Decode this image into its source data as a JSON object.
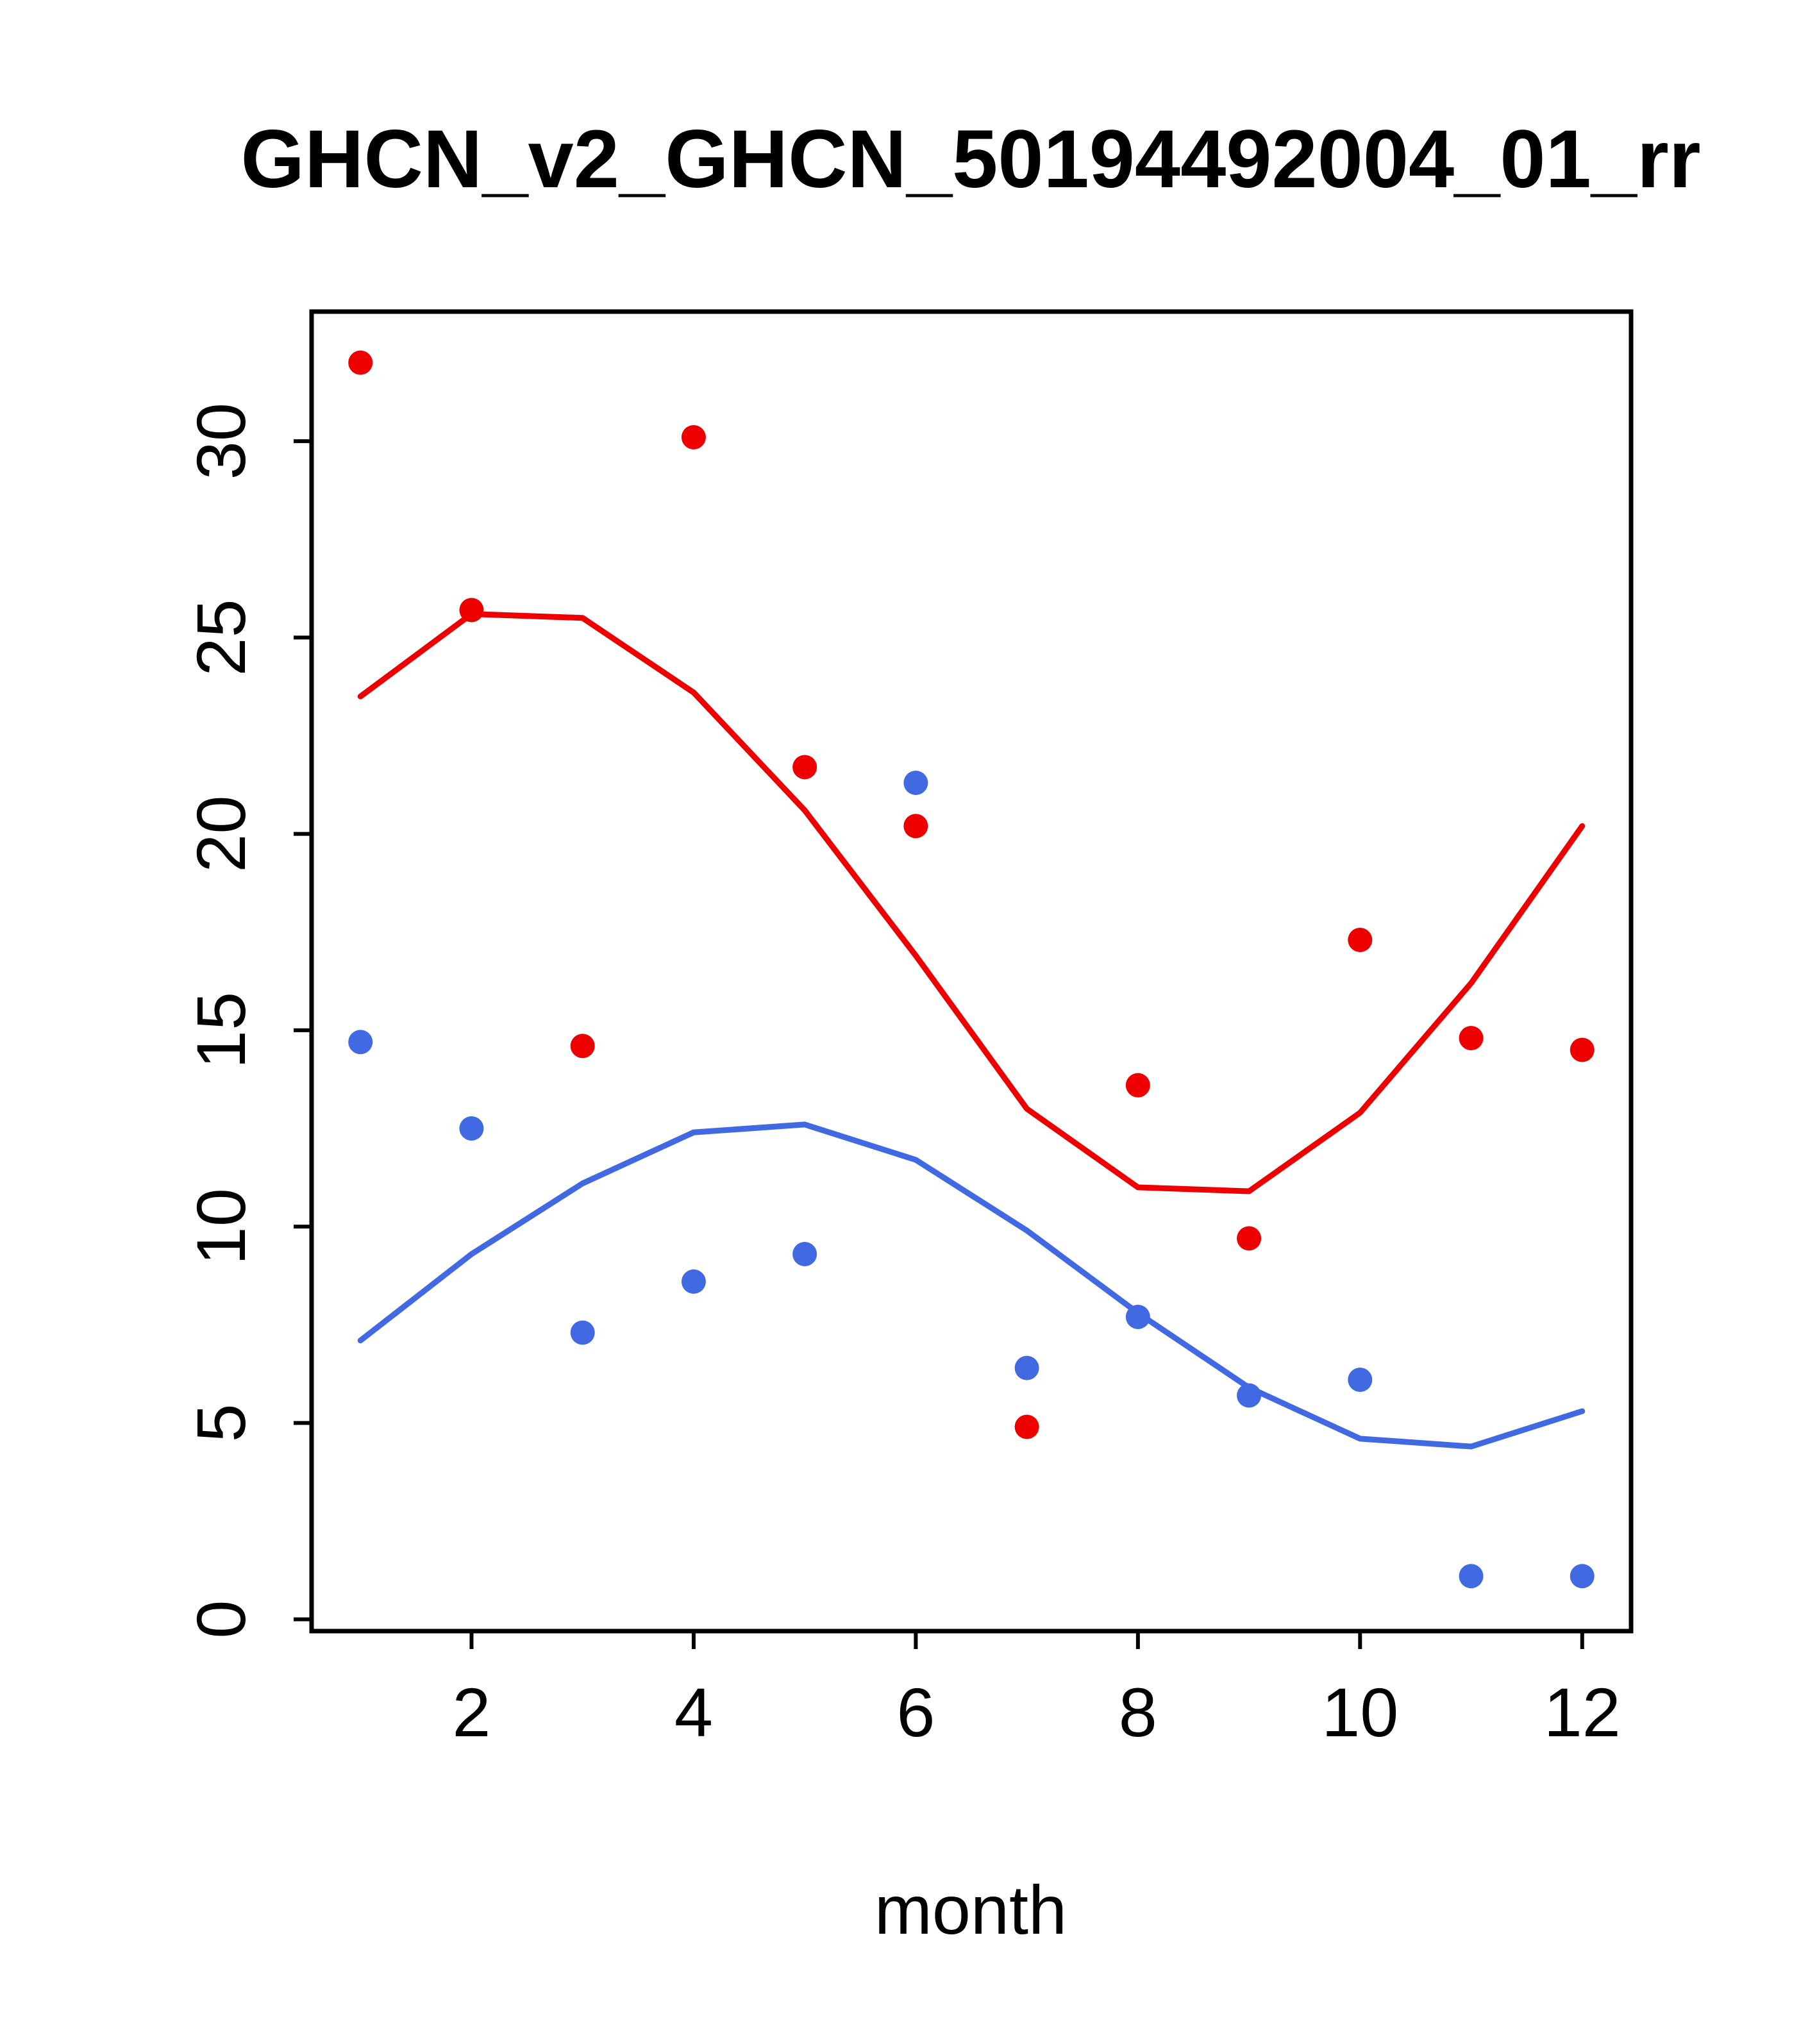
{
  "title": "GHCN_v2_GHCN_50194492004_01_rr",
  "chart_data": {
    "type": "scatter",
    "title": "GHCN_v2_GHCN_50194492004_01_rr",
    "xlabel": "month",
    "ylabel": "",
    "xlim": [
      0.56,
      12.44
    ],
    "ylim": [
      -0.3,
      33.3
    ],
    "x_ticks": [
      2,
      4,
      6,
      8,
      10,
      12
    ],
    "y_ticks": [
      0,
      5,
      10,
      15,
      20,
      25,
      30
    ],
    "grid": false,
    "legend": "none",
    "colors": {
      "red": "#ee0000",
      "blue": "#4169e1",
      "axis": "#000000"
    },
    "series": [
      {
        "name": "red-points",
        "type": "points",
        "color": "red",
        "x": [
          1,
          2,
          3,
          4,
          5,
          6,
          7,
          8,
          9,
          10,
          11,
          12
        ],
        "y": [
          32.0,
          25.7,
          14.6,
          30.1,
          21.7,
          20.2,
          4.9,
          13.6,
          9.7,
          17.3,
          14.8,
          14.5
        ]
      },
      {
        "name": "blue-points",
        "type": "points",
        "color": "blue",
        "x": [
          1,
          2,
          3,
          4,
          5,
          6,
          7,
          8,
          9,
          10,
          11,
          12
        ],
        "y": [
          14.7,
          12.5,
          7.3,
          8.6,
          9.3,
          21.3,
          6.4,
          7.7,
          5.7,
          6.1,
          1.1,
          1.1
        ]
      },
      {
        "name": "red-smooth-line",
        "type": "line",
        "color": "red",
        "x": [
          1,
          2,
          3,
          4,
          5,
          6,
          7,
          8,
          9,
          10,
          11,
          12
        ],
        "y": [
          23.5,
          25.6,
          25.5,
          23.6,
          20.6,
          16.9,
          13.0,
          11.0,
          10.9,
          12.9,
          16.2,
          20.2
        ]
      },
      {
        "name": "blue-smooth-line",
        "type": "line",
        "color": "blue",
        "x": [
          1,
          2,
          3,
          4,
          5,
          6,
          7,
          8,
          9,
          10,
          11,
          12
        ],
        "y": [
          7.1,
          9.3,
          11.1,
          12.4,
          12.6,
          11.7,
          9.9,
          7.8,
          5.9,
          4.6,
          4.4,
          5.3
        ]
      }
    ]
  }
}
